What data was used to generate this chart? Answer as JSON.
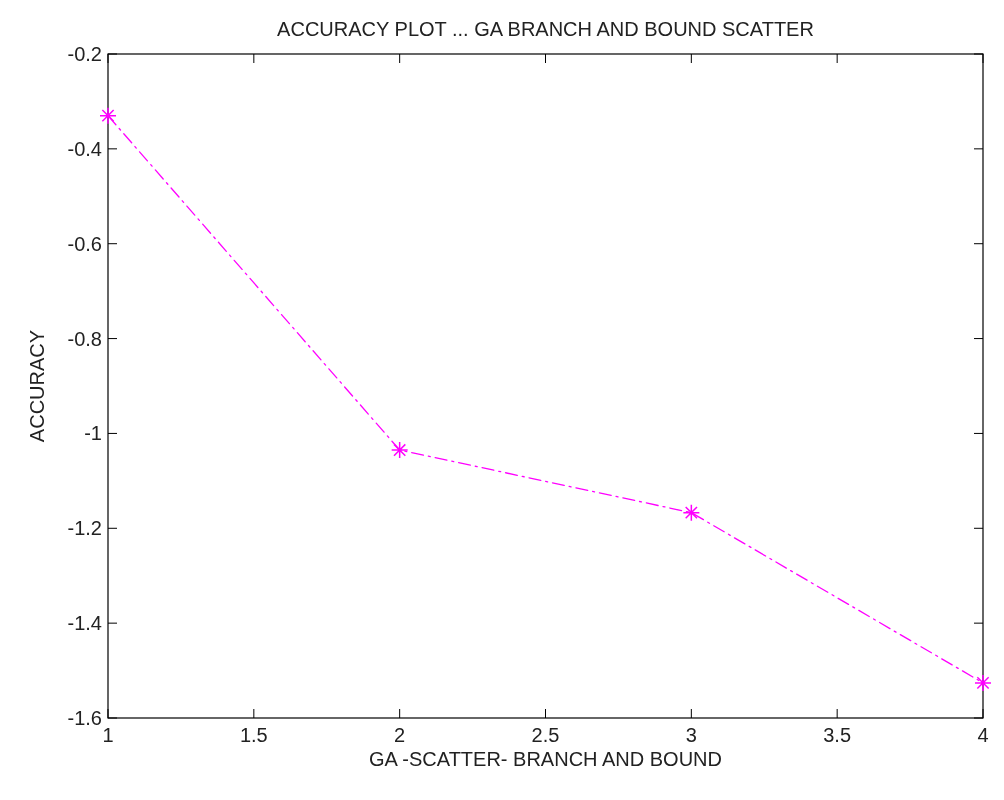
{
  "chart_data": {
    "type": "line",
    "title": "ACCURACY PLOT ... GA BRANCH AND BOUND SCATTER",
    "xlabel": "GA -SCATTER- BRANCH AND BOUND",
    "ylabel": "ACCURACY",
    "x": [
      1,
      2,
      3,
      4
    ],
    "series": [
      {
        "color": "#ff00ff",
        "values": [
          -0.33,
          -1.035,
          -1.167,
          -1.526
        ]
      }
    ],
    "xlim": [
      1,
      4
    ],
    "xticks": [
      1,
      1.5,
      2,
      2.5,
      3,
      3.5,
      4
    ],
    "ylim": [
      -1.6,
      -0.2
    ],
    "yticks": [
      -1.6,
      -1.4,
      -1.2,
      -1,
      -0.8,
      -0.6,
      -0.4,
      -0.2
    ],
    "grid": false,
    "marker": "cross",
    "line_style": "dashdot"
  }
}
